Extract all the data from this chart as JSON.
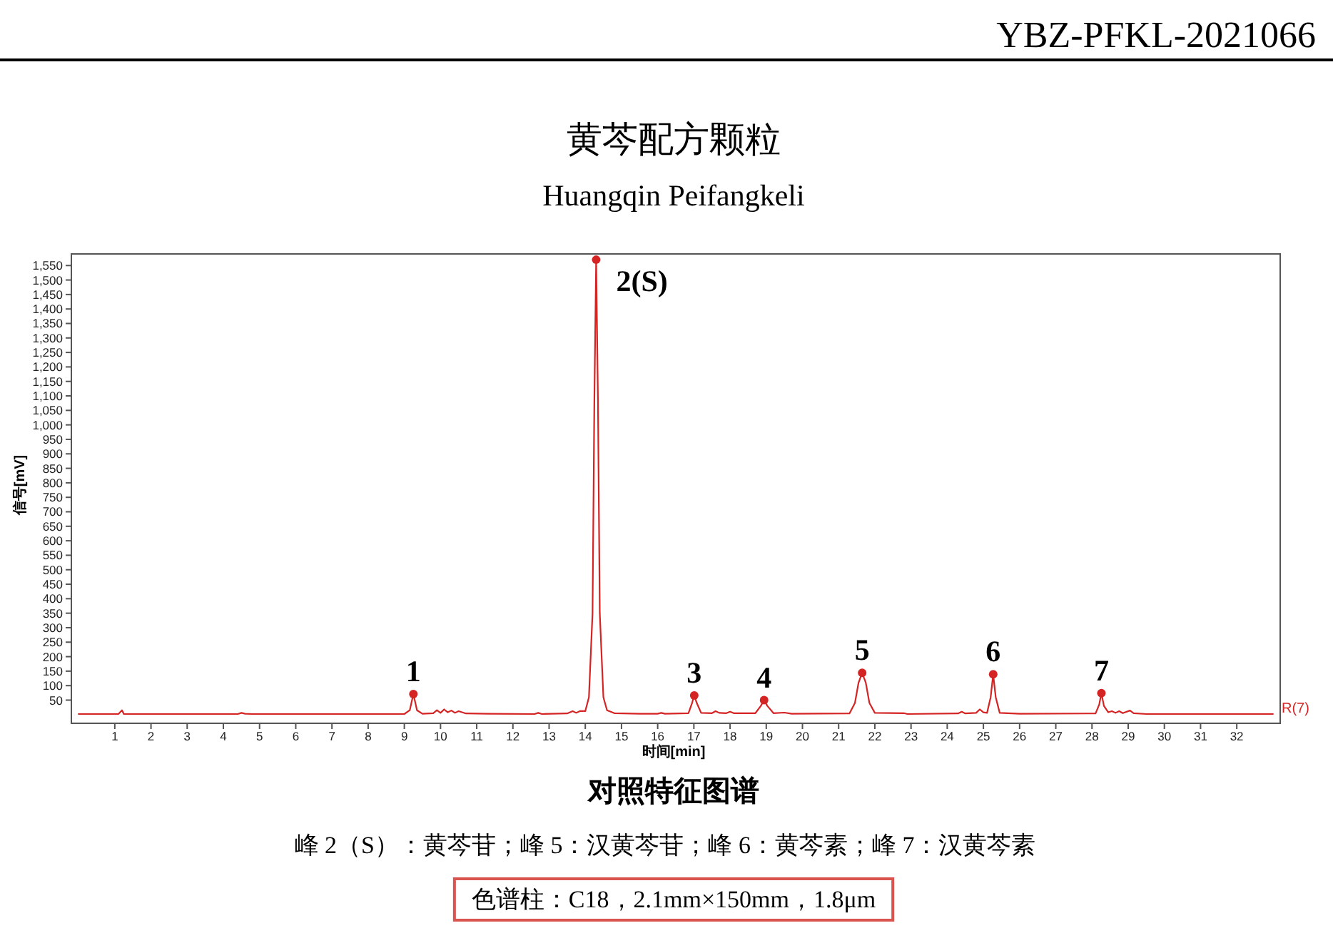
{
  "chart_data": {
    "type": "line",
    "title": "黄芩配方颗粒",
    "subtitle": "Huangqin Peifangkeli",
    "xlabel": "时间[min]",
    "ylabel": "信号[mV]",
    "xlim": [
      -0.2,
      33.2
    ],
    "ylim": [
      -30,
      1590
    ],
    "xticks": [
      1,
      2,
      3,
      4,
      5,
      6,
      7,
      8,
      9,
      10,
      11,
      12,
      13,
      14,
      15,
      16,
      17,
      18,
      19,
      20,
      21,
      22,
      23,
      24,
      25,
      26,
      27,
      28,
      29,
      30,
      31,
      32
    ],
    "yticks": [
      50,
      100,
      150,
      200,
      250,
      300,
      350,
      400,
      450,
      500,
      550,
      600,
      650,
      700,
      750,
      800,
      850,
      900,
      950,
      {
        "value": 1000,
        "label": "1,000"
      },
      {
        "value": 1050,
        "label": "1,050"
      },
      {
        "value": 1100,
        "label": "1,100"
      },
      {
        "value": 1150,
        "label": "1,150"
      },
      {
        "value": 1200,
        "label": "1,200"
      },
      {
        "value": 1250,
        "label": "1,250"
      },
      {
        "value": 1300,
        "label": "1,300"
      },
      {
        "value": 1350,
        "label": "1,350"
      },
      {
        "value": 1400,
        "label": "1,400"
      },
      {
        "value": 1450,
        "label": "1,450"
      },
      {
        "value": 1500,
        "label": "1,500"
      },
      {
        "value": 1550,
        "label": "1,550"
      }
    ],
    "series": [
      {
        "name": "R(7)",
        "type": "line",
        "color": "#d42424",
        "x": [
          0.0,
          1.1,
          1.2,
          1.25,
          4.4,
          4.5,
          4.6,
          4.8,
          9.0,
          9.15,
          9.25,
          9.35,
          9.5,
          9.8,
          9.9,
          10.0,
          10.1,
          10.2,
          10.3,
          10.4,
          10.5,
          10.7,
          11.3,
          12.6,
          12.7,
          12.8,
          13.5,
          13.65,
          13.75,
          13.85,
          14.0,
          14.1,
          14.2,
          14.25,
          14.3,
          14.35,
          14.4,
          14.5,
          14.6,
          14.8,
          15.5,
          16.0,
          16.1,
          16.2,
          16.85,
          16.95,
          17.01,
          17.08,
          17.2,
          17.5,
          17.6,
          17.7,
          17.9,
          18.0,
          18.1,
          18.7,
          18.85,
          18.94,
          19.03,
          19.2,
          19.5,
          19.7,
          21.3,
          21.45,
          21.55,
          21.65,
          21.75,
          21.85,
          22.0,
          22.8,
          22.9,
          24.3,
          24.4,
          24.5,
          24.8,
          24.9,
          25.0,
          25.1,
          25.2,
          25.27,
          25.34,
          25.45,
          26.0,
          28.1,
          28.2,
          28.26,
          28.33,
          28.45,
          28.55,
          28.65,
          28.75,
          28.85,
          29.05,
          29.15,
          29.5,
          33.0
        ],
        "values": [
          2,
          2,
          15,
          2,
          2,
          6,
          3,
          2,
          2,
          15,
          71,
          15,
          3,
          5,
          15,
          6,
          18,
          8,
          14,
          6,
          12,
          4,
          3,
          2,
          6,
          2,
          4,
          12,
          6,
          12,
          12,
          60,
          350,
          1080,
          1570,
          1080,
          350,
          60,
          15,
          5,
          3,
          3,
          6,
          3,
          5,
          40,
          66,
          40,
          6,
          5,
          12,
          6,
          5,
          10,
          5,
          5,
          30,
          50,
          30,
          5,
          7,
          3,
          4,
          40,
          110,
          144,
          110,
          40,
          6,
          5,
          2,
          4,
          10,
          4,
          6,
          18,
          8,
          6,
          60,
          139,
          60,
          6,
          3,
          4,
          35,
          74,
          30,
          8,
          12,
          6,
          12,
          5,
          14,
          5,
          2,
          2
        ]
      },
      {
        "type": "scatter",
        "marker": "circle",
        "color": "#d42424",
        "x": [
          9.25,
          14.3,
          17.01,
          18.94,
          21.65,
          25.27,
          28.26
        ],
        "values": [
          71,
          1570,
          66,
          50,
          144,
          139,
          74
        ]
      }
    ],
    "annotations": [
      "YBZ-PFKL-2021066",
      "对照特征图谱",
      "峰 2（S）：黄芩苷；峰 5：汉黄芩苷；峰 6：黄芩素；峰 7：汉黄芩素",
      "色谱柱：C18，2.1mm×150mm，1.8μm",
      {
        "text": "1",
        "x": 9.25,
        "y": 71
      },
      {
        "text": "2(S)",
        "x": 14.3,
        "y": 1570
      },
      {
        "text": "3",
        "x": 17.01,
        "y": 66
      },
      {
        "text": "4",
        "x": 18.94,
        "y": 50
      },
      {
        "text": "5",
        "x": 21.65,
        "y": 144
      },
      {
        "text": "6",
        "x": 25.27,
        "y": 139
      },
      {
        "text": "7",
        "x": 28.26,
        "y": 74
      }
    ]
  }
}
